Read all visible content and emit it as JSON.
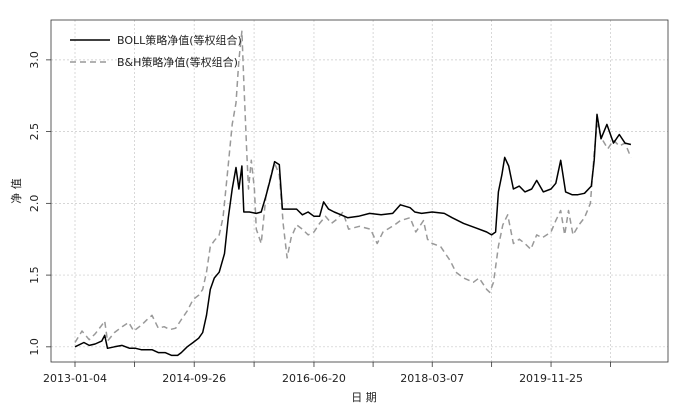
{
  "chart_data": {
    "type": "line",
    "title": "",
    "xlabel": "日 期",
    "ylabel": "净 值",
    "ylim": [
      0.95,
      3.25
    ],
    "yticks": [
      1.0,
      1.5,
      2.0,
      2.5,
      3.0
    ],
    "ytick_labels": [
      "1.0",
      "1.5",
      "2.0",
      "2.5",
      "3.0"
    ],
    "xlim": [
      "2013-01-04",
      "2021-05-01"
    ],
    "xticks": [
      "2013-01-04",
      "2014-09-26",
      "2016-06-20",
      "2018-03-07",
      "2019-11-25"
    ],
    "grid": true,
    "legend_position": "top-left",
    "series": [
      {
        "name": "BOLL策略净值(等权组合)",
        "color": "#000000",
        "dash": "solid",
        "points": [
          [
            "2013-01-04",
            1.0
          ],
          [
            "2013-02-20",
            1.03
          ],
          [
            "2013-03-20",
            1.01
          ],
          [
            "2013-04-20",
            1.02
          ],
          [
            "2013-05-25",
            1.04
          ],
          [
            "2013-06-10",
            1.08
          ],
          [
            "2013-06-25",
            0.99
          ],
          [
            "2013-08-01",
            1.0
          ],
          [
            "2013-09-10",
            1.01
          ],
          [
            "2013-10-20",
            0.99
          ],
          [
            "2013-11-20",
            0.99
          ],
          [
            "2013-12-20",
            0.98
          ],
          [
            "2014-02-15",
            0.98
          ],
          [
            "2014-03-20",
            0.96
          ],
          [
            "2014-04-25",
            0.96
          ],
          [
            "2014-05-30",
            0.94
          ],
          [
            "2014-06-30",
            0.94
          ],
          [
            "2014-07-20",
            0.96
          ],
          [
            "2014-08-20",
            1.0
          ],
          [
            "2014-09-20",
            1.03
          ],
          [
            "2014-10-20",
            1.06
          ],
          [
            "2014-11-10",
            1.1
          ],
          [
            "2014-11-30",
            1.22
          ],
          [
            "2014-12-20",
            1.4
          ],
          [
            "2015-01-10",
            1.48
          ],
          [
            "2015-02-05",
            1.52
          ],
          [
            "2015-03-05",
            1.65
          ],
          [
            "2015-03-25",
            1.9
          ],
          [
            "2015-04-15",
            2.1
          ],
          [
            "2015-05-05",
            2.25
          ],
          [
            "2015-05-20",
            2.1
          ],
          [
            "2015-06-05",
            2.26
          ],
          [
            "2015-06-15",
            1.94
          ],
          [
            "2015-07-15",
            1.94
          ],
          [
            "2015-08-20",
            1.93
          ],
          [
            "2015-09-15",
            1.94
          ],
          [
            "2015-10-10",
            2.05
          ],
          [
            "2015-11-05",
            2.18
          ],
          [
            "2015-11-25",
            2.29
          ],
          [
            "2015-12-20",
            2.27
          ],
          [
            "2016-01-05",
            1.96
          ],
          [
            "2016-02-15",
            1.96
          ],
          [
            "2016-03-20",
            1.96
          ],
          [
            "2016-04-20",
            1.92
          ],
          [
            "2016-05-20",
            1.94
          ],
          [
            "2016-06-20",
            1.91
          ],
          [
            "2016-07-20",
            1.91
          ],
          [
            "2016-08-10",
            2.01
          ],
          [
            "2016-09-05",
            1.96
          ],
          [
            "2016-10-05",
            1.94
          ],
          [
            "2016-11-10",
            1.92
          ],
          [
            "2016-12-15",
            1.9
          ],
          [
            "2017-02-10",
            1.91
          ],
          [
            "2017-04-10",
            1.93
          ],
          [
            "2017-06-10",
            1.92
          ],
          [
            "2017-08-10",
            1.93
          ],
          [
            "2017-09-20",
            1.99
          ],
          [
            "2017-11-10",
            1.97
          ],
          [
            "2017-12-05",
            1.94
          ],
          [
            "2018-01-10",
            1.93
          ],
          [
            "2018-03-07",
            1.94
          ],
          [
            "2018-05-10",
            1.93
          ],
          [
            "2018-06-20",
            1.9
          ],
          [
            "2018-08-20",
            1.86
          ],
          [
            "2018-10-20",
            1.83
          ],
          [
            "2018-12-20",
            1.8
          ],
          [
            "2019-01-15",
            1.78
          ],
          [
            "2019-02-05",
            1.8
          ],
          [
            "2019-02-20",
            2.08
          ],
          [
            "2019-03-10",
            2.2
          ],
          [
            "2019-03-25",
            2.32
          ],
          [
            "2019-04-15",
            2.26
          ],
          [
            "2019-05-10",
            2.1
          ],
          [
            "2019-06-10",
            2.12
          ],
          [
            "2019-07-10",
            2.08
          ],
          [
            "2019-08-15",
            2.1
          ],
          [
            "2019-09-10",
            2.16
          ],
          [
            "2019-10-15",
            2.08
          ],
          [
            "2019-11-25",
            2.1
          ],
          [
            "2019-12-20",
            2.14
          ],
          [
            "2020-01-15",
            2.3
          ],
          [
            "2020-02-10",
            2.08
          ],
          [
            "2020-03-15",
            2.06
          ],
          [
            "2020-04-15",
            2.06
          ],
          [
            "2020-05-20",
            2.07
          ],
          [
            "2020-06-25",
            2.12
          ],
          [
            "2020-07-10",
            2.3
          ],
          [
            "2020-07-25",
            2.62
          ],
          [
            "2020-08-15",
            2.45
          ],
          [
            "2020-09-15",
            2.55
          ],
          [
            "2020-10-20",
            2.42
          ],
          [
            "2020-11-20",
            2.48
          ],
          [
            "2020-12-20",
            2.42
          ],
          [
            "2021-01-20",
            2.41
          ]
        ]
      },
      {
        "name": "B&H策略净值(等权组合)",
        "color": "#999999",
        "dash": "dashed",
        "points": [
          [
            "2013-01-04",
            1.03
          ],
          [
            "2013-02-10",
            1.11
          ],
          [
            "2013-03-20",
            1.05
          ],
          [
            "2013-04-20",
            1.09
          ],
          [
            "2013-05-25",
            1.15
          ],
          [
            "2013-06-10",
            1.18
          ],
          [
            "2013-06-25",
            1.04
          ],
          [
            "2013-08-01",
            1.1
          ],
          [
            "2013-09-10",
            1.14
          ],
          [
            "2013-10-15",
            1.17
          ],
          [
            "2013-11-10",
            1.11
          ],
          [
            "2013-12-20",
            1.15
          ],
          [
            "2014-01-20",
            1.19
          ],
          [
            "2014-02-15",
            1.22
          ],
          [
            "2014-03-20",
            1.13
          ],
          [
            "2014-04-20",
            1.14
          ],
          [
            "2014-05-20",
            1.12
          ],
          [
            "2014-06-20",
            1.13
          ],
          [
            "2014-07-20",
            1.19
          ],
          [
            "2014-08-20",
            1.25
          ],
          [
            "2014-09-20",
            1.33
          ],
          [
            "2014-10-20",
            1.36
          ],
          [
            "2014-11-10",
            1.4
          ],
          [
            "2014-11-30",
            1.52
          ],
          [
            "2014-12-20",
            1.7
          ],
          [
            "2015-01-10",
            1.74
          ],
          [
            "2015-02-05",
            1.78
          ],
          [
            "2015-02-25",
            1.9
          ],
          [
            "2015-03-20",
            2.2
          ],
          [
            "2015-04-15",
            2.55
          ],
          [
            "2015-05-05",
            2.7
          ],
          [
            "2015-05-20",
            3.0
          ],
          [
            "2015-06-05",
            3.2
          ],
          [
            "2015-06-15",
            2.85
          ],
          [
            "2015-07-01",
            2.35
          ],
          [
            "2015-07-10",
            2.1
          ],
          [
            "2015-07-25",
            2.3
          ],
          [
            "2015-08-10",
            2.1
          ],
          [
            "2015-08-20",
            1.82
          ],
          [
            "2015-09-15",
            1.72
          ],
          [
            "2015-10-10",
            2.05
          ],
          [
            "2015-11-10",
            2.22
          ],
          [
            "2015-11-25",
            2.28
          ],
          [
            "2015-12-20",
            2.2
          ],
          [
            "2016-01-10",
            1.85
          ],
          [
            "2016-01-30",
            1.62
          ],
          [
            "2016-02-20",
            1.76
          ],
          [
            "2016-03-20",
            1.85
          ],
          [
            "2016-04-20",
            1.82
          ],
          [
            "2016-05-20",
            1.78
          ],
          [
            "2016-06-20",
            1.8
          ],
          [
            "2016-07-20",
            1.86
          ],
          [
            "2016-08-20",
            1.91
          ],
          [
            "2016-09-20",
            1.86
          ],
          [
            "2016-10-20",
            1.89
          ],
          [
            "2016-11-20",
            1.94
          ],
          [
            "2016-12-20",
            1.82
          ],
          [
            "2017-02-15",
            1.84
          ],
          [
            "2017-04-15",
            1.82
          ],
          [
            "2017-05-20",
            1.72
          ],
          [
            "2017-06-20",
            1.8
          ],
          [
            "2017-08-20",
            1.85
          ],
          [
            "2017-09-20",
            1.88
          ],
          [
            "2017-11-10",
            1.9
          ],
          [
            "2017-12-10",
            1.8
          ],
          [
            "2018-01-20",
            1.88
          ],
          [
            "2018-02-10",
            1.75
          ],
          [
            "2018-03-07",
            1.72
          ],
          [
            "2018-04-20",
            1.7
          ],
          [
            "2018-06-10",
            1.6
          ],
          [
            "2018-07-10",
            1.52
          ],
          [
            "2018-08-20",
            1.48
          ],
          [
            "2018-10-10",
            1.45
          ],
          [
            "2018-11-10",
            1.48
          ],
          [
            "2018-12-20",
            1.4
          ],
          [
            "2019-01-05",
            1.38
          ],
          [
            "2019-01-25",
            1.45
          ],
          [
            "2019-02-20",
            1.7
          ],
          [
            "2019-03-15",
            1.85
          ],
          [
            "2019-04-10",
            1.92
          ],
          [
            "2019-05-10",
            1.72
          ],
          [
            "2019-06-10",
            1.75
          ],
          [
            "2019-07-10",
            1.72
          ],
          [
            "2019-08-10",
            1.68
          ],
          [
            "2019-09-10",
            1.78
          ],
          [
            "2019-10-10",
            1.76
          ],
          [
            "2019-11-25",
            1.8
          ],
          [
            "2019-12-20",
            1.88
          ],
          [
            "2020-01-15",
            1.95
          ],
          [
            "2020-02-05",
            1.78
          ],
          [
            "2020-02-25",
            1.95
          ],
          [
            "2020-03-20",
            1.78
          ],
          [
            "2020-04-20",
            1.85
          ],
          [
            "2020-05-20",
            1.9
          ],
          [
            "2020-06-20",
            2.0
          ],
          [
            "2020-07-10",
            2.35
          ],
          [
            "2020-07-25",
            2.55
          ],
          [
            "2020-08-20",
            2.45
          ],
          [
            "2020-09-20",
            2.38
          ],
          [
            "2020-10-20",
            2.44
          ],
          [
            "2020-11-20",
            2.4
          ],
          [
            "2020-12-20",
            2.42
          ],
          [
            "2021-01-20",
            2.32
          ]
        ]
      }
    ]
  }
}
